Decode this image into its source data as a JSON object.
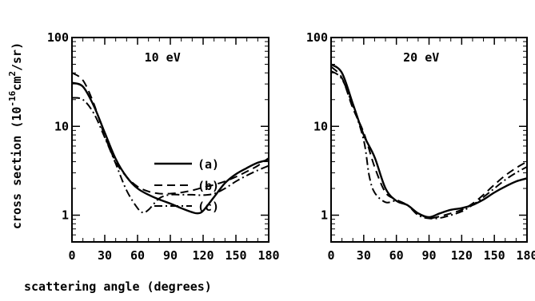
{
  "ylabel": {
    "prefix": "cross section (10",
    "exp1": "-16",
    "mid": "cm",
    "exp2": "2",
    "suffix": "/sr)"
  },
  "xlabel": "scattering angle (degrees)",
  "legend": [
    {
      "label": "(a)",
      "style": "solid"
    },
    {
      "label": "(b)",
      "style": "dashed"
    },
    {
      "label": "(c)",
      "style": "dashdot"
    }
  ],
  "chart_data": [
    {
      "type": "line",
      "title": "10 eV",
      "xlim": [
        0,
        180
      ],
      "ylim": [
        0.5,
        100
      ],
      "yscale": "log",
      "xticks": [
        0,
        30,
        60,
        90,
        120,
        150,
        180
      ],
      "xtick_labels": [
        "0",
        "30",
        "60",
        "90",
        "120",
        "150",
        "180"
      ],
      "yticks": [
        1,
        10,
        100
      ],
      "ytick_labels": [
        "1",
        "10",
        "100"
      ],
      "series": [
        {
          "name": "(a)",
          "style": "solid",
          "x": [
            0,
            10,
            20,
            30,
            40,
            50,
            60,
            70,
            80,
            90,
            100,
            110,
            115,
            120,
            130,
            140,
            150,
            160,
            170,
            180
          ],
          "y": [
            31,
            28,
            17,
            8.5,
            4.3,
            2.7,
            2.0,
            1.7,
            1.5,
            1.35,
            1.2,
            1.08,
            1.05,
            1.12,
            1.6,
            2.3,
            2.9,
            3.4,
            3.9,
            4.2
          ]
        },
        {
          "name": "(b)",
          "style": "dashed",
          "x": [
            0,
            10,
            20,
            30,
            40,
            50,
            60,
            70,
            80,
            90,
            100,
            110,
            120,
            130,
            140,
            150,
            160,
            170,
            180
          ],
          "y": [
            40,
            33,
            18,
            7.8,
            4.0,
            2.7,
            2.1,
            1.85,
            1.75,
            1.75,
            1.8,
            1.9,
            2.05,
            2.2,
            2.4,
            2.7,
            3.1,
            3.6,
            4.4
          ]
        },
        {
          "name": "(c)",
          "style": "dashdot",
          "x": [
            0,
            10,
            20,
            30,
            40,
            50,
            60,
            65,
            70,
            80,
            90,
            100,
            110,
            120,
            130,
            140,
            150,
            160,
            170,
            180
          ],
          "y": [
            21,
            20,
            14,
            7.5,
            3.8,
            1.9,
            1.2,
            1.07,
            1.15,
            1.55,
            1.7,
            1.7,
            1.7,
            1.68,
            1.75,
            2.0,
            2.4,
            2.8,
            3.2,
            3.6
          ]
        }
      ]
    },
    {
      "type": "line",
      "title": "20 eV",
      "xlim": [
        0,
        180
      ],
      "ylim": [
        0.5,
        100
      ],
      "yscale": "log",
      "xticks": [
        0,
        30,
        60,
        90,
        120,
        150,
        180
      ],
      "xtick_labels": [
        "0",
        "30",
        "60",
        "90",
        "120",
        "150",
        "180"
      ],
      "yticks": [
        1,
        10,
        100
      ],
      "ytick_labels": [
        "1",
        "10",
        "100"
      ],
      "series": [
        {
          "name": "(a)",
          "style": "solid",
          "x": [
            0,
            10,
            20,
            30,
            40,
            50,
            60,
            70,
            80,
            90,
            100,
            110,
            120,
            130,
            140,
            150,
            160,
            170,
            180
          ],
          "y": [
            50,
            40,
            18,
            8.0,
            4.5,
            2.0,
            1.45,
            1.3,
            1.05,
            0.95,
            1.05,
            1.15,
            1.2,
            1.3,
            1.5,
            1.8,
            2.1,
            2.4,
            2.6
          ]
        },
        {
          "name": "(b)",
          "style": "dashed",
          "x": [
            0,
            10,
            20,
            30,
            40,
            50,
            60,
            70,
            80,
            90,
            100,
            110,
            120,
            130,
            140,
            150,
            160,
            170,
            180
          ],
          "y": [
            47,
            35,
            16,
            8.5,
            3.5,
            1.8,
            1.5,
            1.3,
            1.05,
            0.93,
            0.97,
            1.05,
            1.15,
            1.35,
            1.7,
            2.2,
            2.8,
            3.4,
            4.0
          ]
        },
        {
          "name": "(c)",
          "style": "dashdot",
          "x": [
            0,
            10,
            20,
            30,
            35,
            40,
            50,
            60,
            70,
            80,
            90,
            100,
            110,
            120,
            130,
            140,
            150,
            160,
            170,
            180
          ],
          "y": [
            42,
            34,
            17,
            7.0,
            2.8,
            1.8,
            1.4,
            1.45,
            1.3,
            1.0,
            0.92,
            0.93,
            1.0,
            1.1,
            1.3,
            1.6,
            2.0,
            2.5,
            3.0,
            3.5
          ]
        }
      ]
    }
  ]
}
